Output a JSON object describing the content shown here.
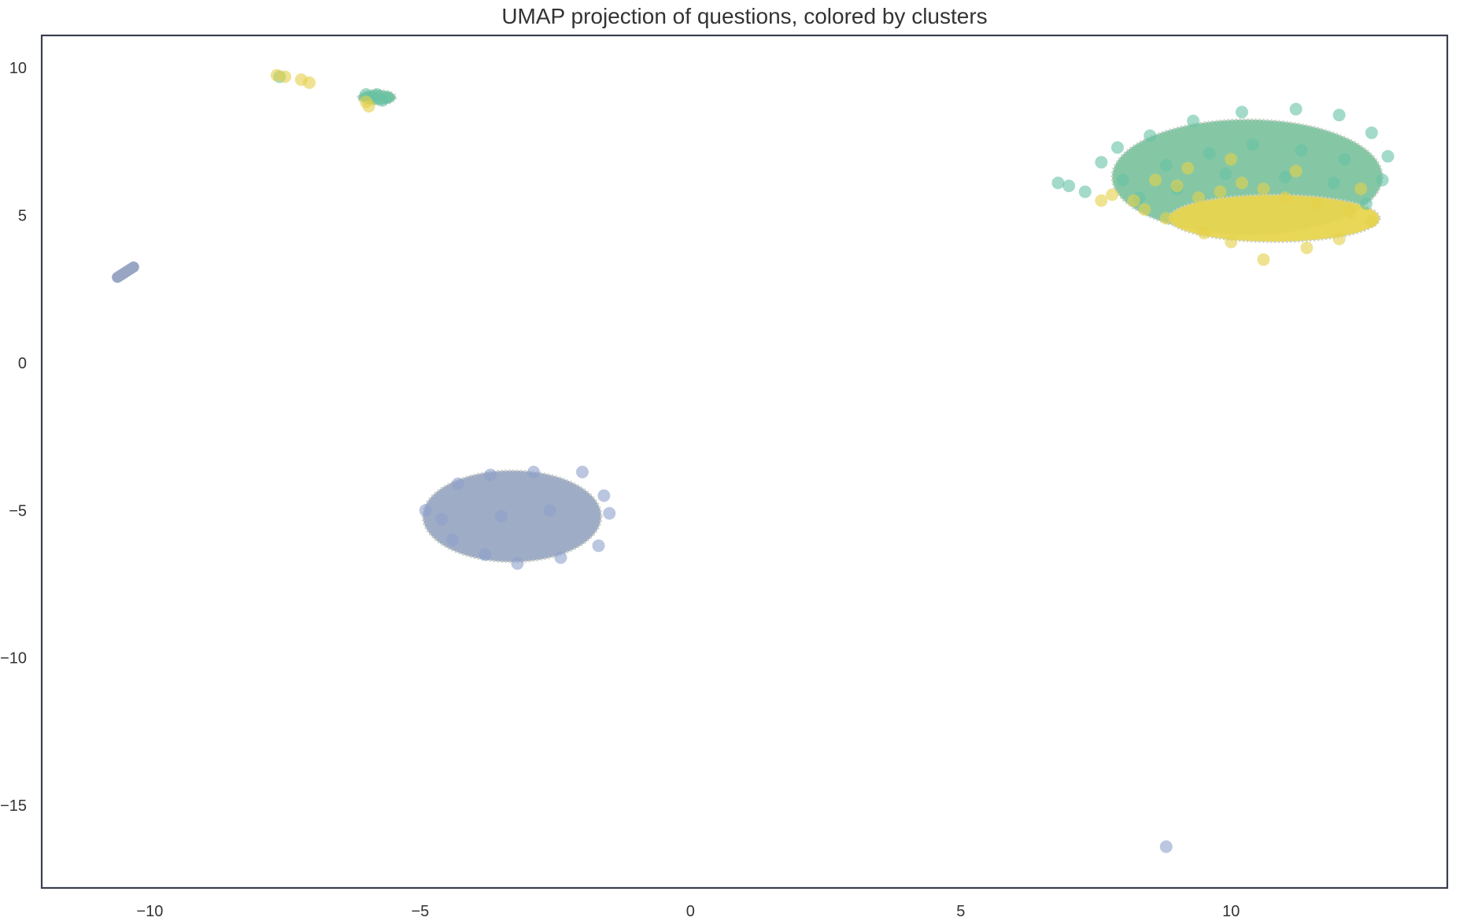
{
  "chart_data": {
    "type": "scatter",
    "title": "UMAP projection of questions, colored by clusters",
    "xlabel": "",
    "ylabel": "",
    "xlim": [
      -12,
      14
    ],
    "ylim": [
      -17.8,
      11.1
    ],
    "xticks": [
      -10,
      -5,
      0,
      5,
      10
    ],
    "yticks": [
      10,
      5,
      0,
      -5,
      -10,
      -15
    ],
    "xtick_labels": [
      "−10",
      "−5",
      "0",
      "5",
      "10"
    ],
    "ytick_labels": [
      "10",
      "5",
      "0",
      "−5",
      "−10",
      "−15"
    ],
    "grid": false,
    "legend": "none",
    "marker_alpha": 0.6,
    "series": [
      {
        "color": "#66c2a5",
        "clusters": [
          {
            "shape": "blob",
            "center": [
              10.3,
              6.3
            ],
            "rx": 2.5,
            "ry": 1.95,
            "fill": "#7ec4a0"
          },
          {
            "shape": "blob",
            "center": [
              -5.8,
              9.0
            ],
            "rx": 0.35,
            "ry": 0.25,
            "fill": "#78c49e"
          }
        ],
        "points": [
          [
            -7.6,
            9.7
          ],
          [
            -6.0,
            9.1
          ],
          [
            -5.9,
            9.0
          ],
          [
            -5.8,
            9.1
          ],
          [
            -5.7,
            8.9
          ],
          [
            -5.6,
            9.0
          ],
          [
            7.0,
            6.0
          ],
          [
            6.8,
            6.1
          ],
          [
            7.3,
            5.8
          ],
          [
            7.6,
            6.8
          ],
          [
            7.9,
            7.3
          ],
          [
            8.5,
            7.7
          ],
          [
            9.3,
            8.2
          ],
          [
            10.2,
            8.5
          ],
          [
            11.2,
            8.6
          ],
          [
            12.0,
            8.4
          ],
          [
            12.6,
            7.8
          ],
          [
            12.9,
            7.0
          ],
          [
            12.8,
            6.2
          ],
          [
            12.5,
            5.4
          ],
          [
            8.0,
            6.2
          ],
          [
            8.8,
            6.7
          ],
          [
            9.6,
            7.1
          ],
          [
            10.4,
            7.4
          ],
          [
            11.3,
            7.2
          ],
          [
            12.1,
            6.9
          ],
          [
            8.3,
            5.6
          ],
          [
            9.0,
            5.9
          ],
          [
            9.9,
            6.4
          ],
          [
            11.0,
            6.3
          ],
          [
            11.9,
            6.1
          ]
        ]
      },
      {
        "color": "#e5d049",
        "clusters": [
          {
            "shape": "blob",
            "center": [
              10.8,
              4.9
            ],
            "rx": 1.95,
            "ry": 0.8,
            "fill": "#e8d54e"
          }
        ],
        "points": [
          [
            -7.65,
            9.75
          ],
          [
            -7.5,
            9.7
          ],
          [
            -7.2,
            9.6
          ],
          [
            -7.05,
            9.5
          ],
          [
            -6.0,
            8.85
          ],
          [
            -5.95,
            8.7
          ],
          [
            8.2,
            5.5
          ],
          [
            8.4,
            5.2
          ],
          [
            7.8,
            5.7
          ],
          [
            8.6,
            6.2
          ],
          [
            9.0,
            6.0
          ],
          [
            9.4,
            5.6
          ],
          [
            9.8,
            5.8
          ],
          [
            10.2,
            6.1
          ],
          [
            10.6,
            5.9
          ],
          [
            11.0,
            5.6
          ],
          [
            11.6,
            5.4
          ],
          [
            12.2,
            5.1
          ],
          [
            12.6,
            4.8
          ],
          [
            9.5,
            4.4
          ],
          [
            10.0,
            4.1
          ],
          [
            10.6,
            3.5
          ],
          [
            11.4,
            3.9
          ],
          [
            12.0,
            4.2
          ],
          [
            8.8,
            4.9
          ],
          [
            9.2,
            6.6
          ],
          [
            10.0,
            6.9
          ],
          [
            11.2,
            6.5
          ],
          [
            12.4,
            5.9
          ],
          [
            7.6,
            5.5
          ]
        ]
      },
      {
        "color": "#8da0cb",
        "clusters": [
          {
            "shape": "blob",
            "center": [
              -3.3,
              -5.2
            ],
            "rx": 1.65,
            "ry": 1.55,
            "fill": "#9aa8c2"
          },
          {
            "shape": "line",
            "from": [
              -10.6,
              2.9
            ],
            "to": [
              -10.3,
              3.25
            ],
            "fill": "#98a6c3"
          }
        ],
        "points": [
          [
            -4.9,
            -5.0
          ],
          [
            -4.6,
            -5.3
          ],
          [
            -4.3,
            -4.1
          ],
          [
            -3.7,
            -3.8
          ],
          [
            -2.9,
            -3.7
          ],
          [
            -2.0,
            -3.7
          ],
          [
            -1.6,
            -4.5
          ],
          [
            -1.5,
            -5.1
          ],
          [
            -1.7,
            -6.2
          ],
          [
            -2.4,
            -6.6
          ],
          [
            -3.2,
            -6.8
          ],
          [
            -3.8,
            -6.5
          ],
          [
            -4.4,
            -6.0
          ],
          [
            -3.5,
            -5.2
          ],
          [
            -2.6,
            -5.0
          ],
          [
            8.8,
            -16.4
          ]
        ]
      }
    ]
  }
}
